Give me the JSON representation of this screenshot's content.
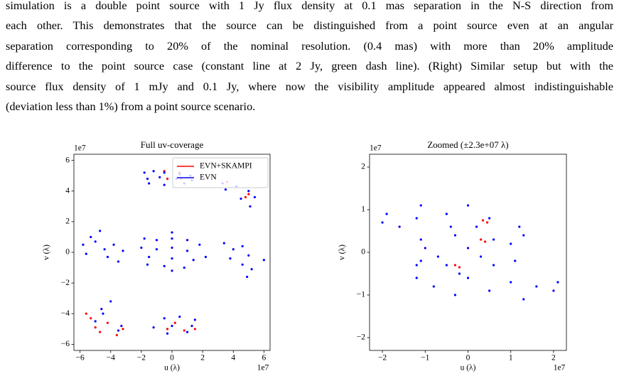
{
  "text": {
    "lines": [
      "simulation is a double point source with 1 Jy flux density at 0.1 mas separation in the N-S direction from",
      "each other.  This demonstrates that the source can be distinguished from a point source even at an angular",
      "separation corresponding to 20% of the nominal resolution.  (0.4 mas) with more than 20% amplitude",
      "difference to the point source case (constant line at 2 Jy, green dash line). (Right) Similar setup but with the",
      "source flux density of 1 mJy and 0.1 Jy, where now the visibility amplitude appeared almost indistinguishable",
      "(deviation less than 1%) from a point source scenario."
    ]
  },
  "chart_data": [
    {
      "type": "scatter",
      "title": "Full uv-coverage",
      "x_label": "u (λ)",
      "y_label": "v (λ)",
      "x_offset": "1e7",
      "y_offset": "1e7",
      "legend": "upper right",
      "xlim": [
        -6.4,
        6.4
      ],
      "ylim": [
        -6.4,
        6.4
      ],
      "xticks": [
        {
          "value": -6,
          "label": "−6"
        },
        {
          "value": -4,
          "label": "−4"
        },
        {
          "value": -2,
          "label": "−2"
        },
        0,
        2,
        4,
        6
      ],
      "yticks": [
        {
          "value": -6,
          "label": "−6"
        },
        {
          "value": -4,
          "label": "−4"
        },
        {
          "value": -2,
          "label": "−2"
        },
        0,
        2,
        4,
        6
      ],
      "series": [
        {
          "name": "EVN+SKAMPI",
          "color": "#ff0000",
          "x": [
            -0.5,
            0.5,
            -0.3,
            0.6,
            3.6,
            4.8,
            5.0,
            -5.3,
            -5.0,
            -4.7,
            -3.6,
            -3.2,
            -4.2,
            -5.6,
            -0.3,
            0.8,
            1.5,
            0.2
          ],
          "y": [
            5.3,
            5.2,
            4.8,
            4.8,
            4.6,
            3.6,
            3.8,
            -4.3,
            -4.9,
            -5.2,
            -5.4,
            -5.0,
            -4.6,
            -4.0,
            -5.0,
            -5.1,
            -5.0,
            -4.6
          ]
        },
        {
          "name": "EVN",
          "color": "#0000ff",
          "x": [
            -1.8,
            -1.2,
            -0.5,
            0.5,
            1.2,
            -1.6,
            -0.8,
            0.3,
            1.3,
            -1.5,
            -0.5,
            0.8,
            3.3,
            4.2,
            5.0,
            5.4,
            3.5,
            4.5,
            5.1,
            -5.3,
            -5.8,
            -5.6,
            -4.7,
            -5.0,
            -4.4,
            -3.8,
            -4.2,
            -3.2,
            -3.5,
            -1.8,
            -1.0,
            0,
            1.0,
            1.8,
            -2.0,
            -1,
            0,
            1,
            2.2,
            -1.5,
            0,
            1.4,
            -1.6,
            -0.5,
            0.8,
            0,
            0,
            3.4,
            4.0,
            3.8,
            4.6,
            5.0,
            4.6,
            5.2,
            4.9,
            6.0,
            -4.0,
            -4.6,
            -5.0,
            -4.5,
            -3.3,
            -3.5,
            -0.5,
            0.5,
            1.5,
            -1.2,
            0,
            1.3,
            -0.3,
            1.0
          ],
          "y": [
            5.2,
            5.3,
            5.2,
            5.1,
            5.0,
            4.8,
            4.9,
            4.8,
            4.7,
            4.5,
            4.4,
            4.5,
            4.5,
            4.3,
            4.0,
            3.6,
            4.1,
            3.5,
            3.0,
            1.0,
            0.5,
            -0.1,
            1.4,
            0.7,
            0.2,
            0.5,
            -0.3,
            0.1,
            -0.6,
            0.9,
            0.8,
            0.9,
            0.8,
            0.5,
            0.3,
            0.2,
            0.3,
            0.1,
            -0.3,
            -0.3,
            -0.4,
            -0.5,
            -0.8,
            -0.9,
            -1.0,
            1.3,
            -1.2,
            0.6,
            0.2,
            -0.4,
            0.4,
            -0.2,
            -0.8,
            -1.1,
            -1.6,
            -0.5,
            -3.2,
            -3.7,
            -4.5,
            -4.0,
            -4.8,
            -5.1,
            -4.3,
            -4.2,
            -4.4,
            -4.9,
            -4.8,
            -4.8,
            -5.3,
            -5.2
          ]
        }
      ]
    },
    {
      "type": "scatter",
      "title": "Zoomed (±2.3e+07 λ)",
      "x_label": "u (λ)",
      "y_label": "v (λ)",
      "x_offset": "1e7",
      "y_offset": "1e7",
      "xlim": [
        -2.3,
        2.3
      ],
      "ylim": [
        -2.3,
        2.3
      ],
      "xticks": [
        {
          "value": -2,
          "label": "−2"
        },
        {
          "value": -1,
          "label": "−1"
        },
        0,
        1,
        2
      ],
      "yticks": [
        {
          "value": -2,
          "label": "−2"
        },
        {
          "value": -1,
          "label": "−1"
        },
        0,
        1,
        2
      ],
      "series": [
        {
          "name": "EVN+SKAMPI",
          "color": "#ff0000",
          "x": [
            0.3,
            0.4,
            -0.3,
            -0.2,
            0.35,
            0.45
          ],
          "y": [
            0.3,
            0.25,
            -0.3,
            -0.35,
            0.75,
            0.7
          ]
        },
        {
          "name": "EVN",
          "color": "#0000ff",
          "x": [
            -1.2,
            -1.6,
            -1.9,
            -2.0,
            -0.5,
            0.5,
            1.2,
            1.3,
            -1.1,
            -0.3,
            0.6,
            -1.0,
            0,
            1.0,
            -0.7,
            0.3,
            -1.2,
            -0.5,
            0.6,
            1.1,
            -1.2,
            0,
            1.0,
            1.6,
            -0.8,
            0.5,
            1.3,
            2.0,
            2.1,
            -0.3,
            -1.1,
            0,
            -0.4,
            0.2,
            -0.2,
            -1.1
          ],
          "y": [
            0.8,
            0.6,
            0.9,
            0.7,
            0.9,
            0.8,
            0.6,
            0.4,
            0.3,
            0.4,
            0.3,
            0.1,
            0.1,
            0.2,
            -0.1,
            -0.1,
            -0.3,
            -0.3,
            -0.3,
            -0.2,
            -0.6,
            -0.6,
            -0.7,
            -0.8,
            -0.8,
            -0.9,
            -1.1,
            -0.9,
            -0.7,
            -1.0,
            1.1,
            1.1,
            0.6,
            0.6,
            -0.5,
            -0.2
          ]
        }
      ]
    }
  ]
}
